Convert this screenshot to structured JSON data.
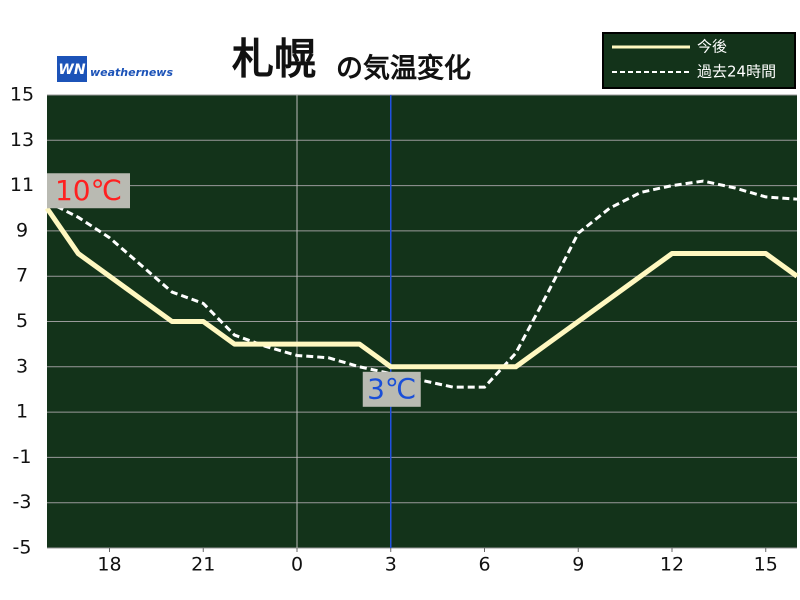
{
  "chart_data": {
    "type": "line",
    "title": "札幌",
    "title_suffix": "の気温変化",
    "logo": {
      "mark": "WN",
      "text": "weathernews"
    },
    "x": [
      16,
      17,
      18,
      19,
      20,
      21,
      22,
      23,
      24,
      25,
      26,
      27,
      28,
      29,
      30,
      31,
      32,
      33,
      34,
      35,
      36,
      37,
      38,
      39,
      40
    ],
    "series": [
      {
        "name": "今後",
        "color": "#fff8c0",
        "dashed": false,
        "values": [
          10,
          8,
          7,
          6,
          5,
          5,
          4,
          4,
          4,
          4,
          4,
          3,
          3,
          3,
          3,
          3,
          4,
          5,
          6,
          7,
          8,
          8,
          8,
          8,
          7
        ]
      },
      {
        "name": "過去24時間",
        "color": "#ffffff",
        "dashed": true,
        "values": [
          10.3,
          9.6,
          8.7,
          7.5,
          6.3,
          5.8,
          4.4,
          3.9,
          3.5,
          3.4,
          3.0,
          2.7,
          2.4,
          2.1,
          2.1,
          3.6,
          6.2,
          8.9,
          10.0,
          10.7,
          11.0,
          11.2,
          10.9,
          10.5,
          10.4
        ]
      }
    ],
    "xlim": [
      16,
      40
    ],
    "xticks": [
      18,
      21,
      {
        "value": 24,
        "label": "0"
      },
      {
        "value": 27,
        "label": "3"
      },
      {
        "value": 30,
        "label": "6"
      },
      {
        "value": 33,
        "label": "9"
      },
      {
        "value": 36,
        "label": "12"
      },
      {
        "value": 39,
        "label": "15"
      }
    ],
    "ylim": [
      -5,
      15
    ],
    "yticks": [
      -5,
      -3,
      -1,
      1,
      3,
      5,
      7,
      9,
      11,
      13,
      15
    ],
    "grid": true,
    "day_boundary_x": 24,
    "now_x": 27,
    "annotations": [
      {
        "text": "10℃",
        "x": 16,
        "y": 10,
        "color": "#ff2020"
      },
      {
        "text": "3℃",
        "x": 27,
        "y": 3,
        "color": "#1a4fd8"
      }
    ],
    "legend": "top-right"
  }
}
